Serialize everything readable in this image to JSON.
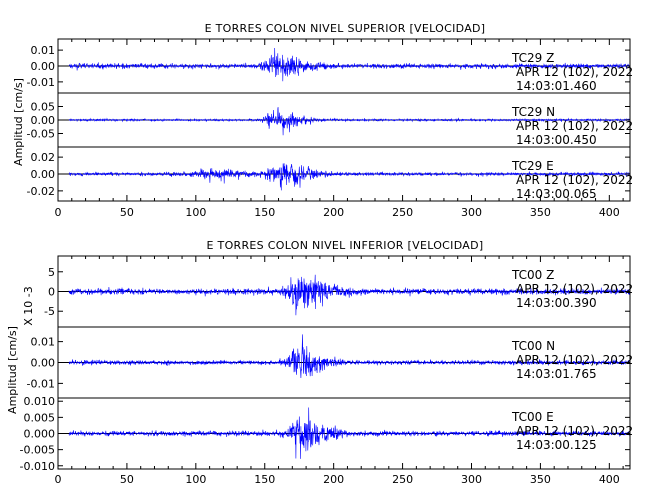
{
  "chart_data": [
    {
      "type": "line",
      "title": "E TORRES COLON NIVEL SUPERIOR [VELOCIDAD]",
      "ylabel": "Amplitud [cm/s]",
      "xlabel": "",
      "xlim": [
        0,
        415
      ],
      "x_ticks": [
        "0",
        "50",
        "100",
        "150",
        "200",
        "250",
        "300",
        "350",
        "400"
      ],
      "x_tick_values": [
        0,
        50,
        100,
        150,
        200,
        250,
        300,
        350,
        400
      ],
      "grid": false,
      "line_color": "#0000ff",
      "channels": [
        {
          "station": "TC29",
          "component": "Z",
          "date": "APR 12 (102), 2022",
          "time": "14:03:01.460",
          "ylim": [
            -0.017,
            0.017
          ],
          "y_ticks": [
            "0.01",
            "0.00",
            "-0.01"
          ],
          "y_tick_values": [
            0.01,
            0,
            -0.01
          ],
          "noise": 0.0023,
          "events": [
            [
              157,
              0.0155,
              6,
              16
            ]
          ]
        },
        {
          "station": "TC29",
          "component": "N",
          "date": "APR 12 (102), 2022",
          "time": "14:03:00.450",
          "ylim": [
            -0.1,
            0.1
          ],
          "y_ticks": [
            "0.05",
            "0.00",
            "-0.05"
          ],
          "y_tick_values": [
            0.05,
            0,
            -0.05
          ],
          "noise": 0.006,
          "events": [
            [
              158,
              0.085,
              5,
              14
            ]
          ]
        },
        {
          "station": "TC29",
          "component": "E",
          "date": "APR 12 (102), 2022",
          "time": "14:03:00.065",
          "ylim": [
            -0.032,
            0.032
          ],
          "y_ticks": [
            "0.02",
            "0.00",
            "-0.02"
          ],
          "y_tick_values": [
            0.02,
            0,
            -0.02
          ],
          "noise": 0.003,
          "events": [
            [
              118,
              0.011,
              14,
              14
            ],
            [
              162,
              0.028,
              7,
              16
            ]
          ]
        }
      ]
    },
    {
      "type": "line",
      "title": "E TORRES COLON NIVEL INFERIOR [VELOCIDAD]",
      "ylabel": "Amplitud [cm/s]",
      "scale_label": "X 10 -3",
      "xlabel": "",
      "xlim": [
        0,
        415
      ],
      "x_ticks": [
        "0",
        "50",
        "100",
        "150",
        "200",
        "250",
        "300",
        "350",
        "400"
      ],
      "x_tick_values": [
        0,
        50,
        100,
        150,
        200,
        250,
        300,
        350,
        400
      ],
      "grid": false,
      "line_color": "#0000ff",
      "channels": [
        {
          "station": "TC00",
          "component": "Z",
          "date": "APR 12 (102), 2022",
          "time": "14:03:00.390",
          "ylim": [
            -9,
            9
          ],
          "y_ticks": [
            "5",
            "0",
            "-5"
          ],
          "y_tick_values": [
            5,
            0,
            -5
          ],
          "noise": 1.2,
          "events": [
            [
              175,
              8.0,
              6,
              16
            ]
          ]
        },
        {
          "station": "TC00",
          "component": "N",
          "date": "APR 12 (102), 2022",
          "time": "14:03:01.765",
          "ylim": [
            -0.017,
            0.017
          ],
          "y_ticks": [
            "0.01",
            "0.00",
            "-0.01"
          ],
          "y_tick_values": [
            0.01,
            0,
            -0.01
          ],
          "noise": 0.0016,
          "events": [
            [
              173,
              0.0155,
              4,
              14
            ]
          ]
        },
        {
          "station": "TC00",
          "component": "E",
          "date": "APR 12 (102), 2022",
          "time": "14:03:00.125",
          "ylim": [
            -0.011,
            0.011
          ],
          "y_ticks": [
            "0.010",
            "0.005",
            "0.000",
            "-0.005",
            "-0.010"
          ],
          "y_tick_values": [
            0.01,
            0.005,
            0,
            -0.005,
            -0.01
          ],
          "noise": 0.0012,
          "events": [
            [
              176,
              0.0105,
              5,
              14
            ]
          ]
        }
      ]
    }
  ]
}
